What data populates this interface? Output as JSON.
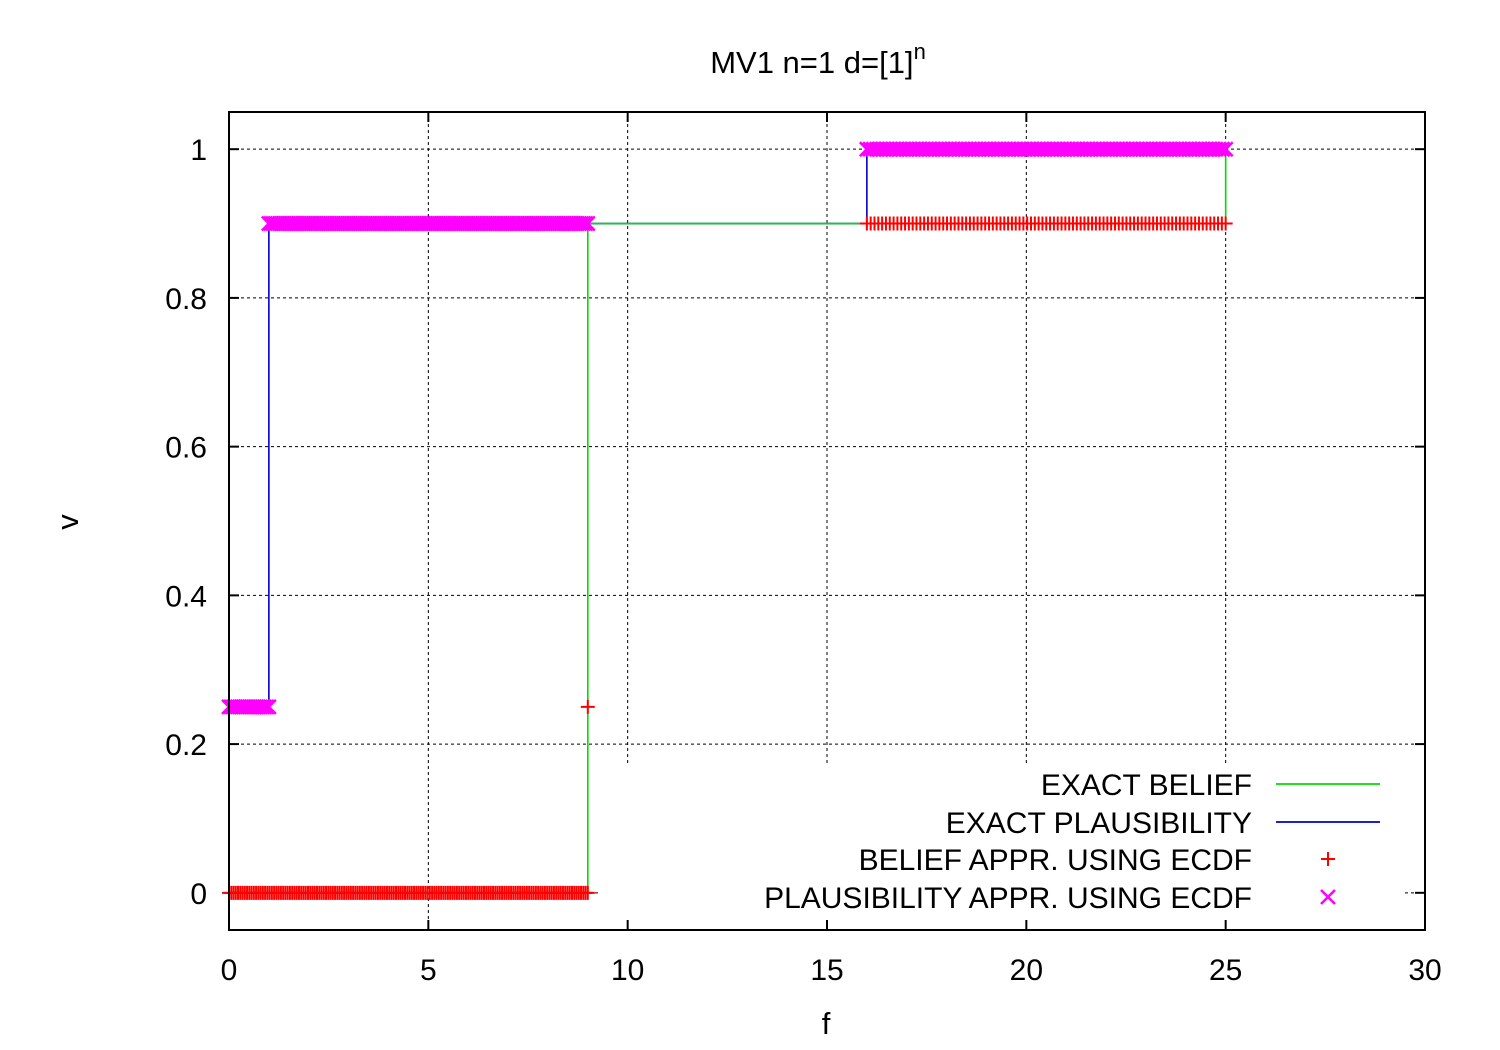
{
  "chart_data": {
    "type": "line",
    "title": "MV1 n=1 d=[1]",
    "title_superscript": "n",
    "xlabel": "f",
    "ylabel": "v",
    "xlim": [
      0,
      30
    ],
    "ylim": [
      -0.05,
      1.05
    ],
    "x_ticks": [
      0,
      5,
      10,
      15,
      20,
      25,
      30
    ],
    "x_tick_labels": [
      "0",
      "5",
      "10",
      "15",
      "20",
      "25",
      "30"
    ],
    "y_ticks": [
      0,
      0.2,
      0.4,
      0.6,
      0.8,
      1
    ],
    "y_tick_labels": [
      "0",
      "0.2",
      "0.4",
      "0.6",
      "0.8",
      "1"
    ],
    "grid": true,
    "legend_position": "bottom-right",
    "series": [
      {
        "name": "EXACT BELIEF",
        "style": "step-line",
        "color": "#00dd00",
        "x": [
          0,
          9,
          9,
          16,
          16,
          25,
          25
        ],
        "y": [
          0,
          0,
          0.9,
          0.9,
          0.9,
          0.9,
          1.0
        ]
      },
      {
        "name": "EXACT PLAUSIBILITY",
        "style": "step-line",
        "color": "#0000cc",
        "x": [
          0,
          1,
          1,
          16,
          16,
          25
        ],
        "y": [
          0.25,
          0.25,
          0.9,
          0.9,
          1.0,
          1.0
        ]
      },
      {
        "name": "BELIEF APPR. USING ECDF",
        "style": "plus-markers",
        "color": "#ff0000",
        "segments": [
          {
            "y": 0.0,
            "x_from": 0,
            "x_to": 9,
            "n": 160
          },
          {
            "y": 0.25,
            "x": [
              9.0
            ]
          },
          {
            "y": 0.9,
            "x_from": 16,
            "x_to": 25,
            "n": 95
          }
        ]
      },
      {
        "name": "PLAUSIBILITY APPR. USING ECDF",
        "style": "x-markers",
        "color": "#ff00ff",
        "segments": [
          {
            "y": 0.25,
            "x_from": 0,
            "x_to": 1,
            "n": 20
          },
          {
            "y": 0.9,
            "x_from": 1,
            "x_to": 9,
            "n": 150
          },
          {
            "y": 1.0,
            "x_from": 16,
            "x_to": 25,
            "n": 110
          }
        ]
      }
    ]
  }
}
